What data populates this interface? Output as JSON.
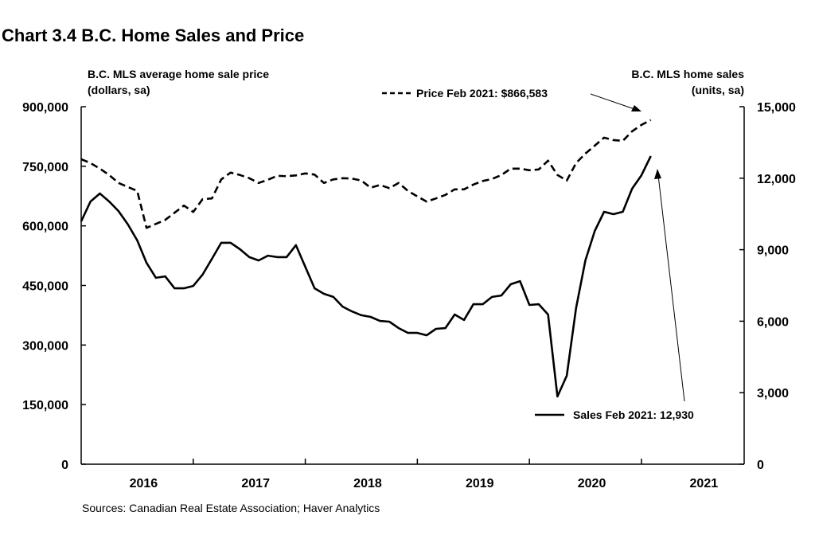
{
  "chart_data": {
    "type": "line",
    "title": "Chart 3.4  B.C. Home Sales and Price",
    "ylabel_left": [
      "B.C. MLS average home sale price",
      "(dollars, sa)"
    ],
    "ylabel_right": [
      "B.C. MLS home sales",
      "(units, sa)"
    ],
    "x_start": "Jan 2016",
    "x_end": "Feb 2021",
    "frequency": "monthly",
    "x_tick_labels": [
      "2016",
      "2017",
      "2018",
      "2019",
      "2020",
      "2021"
    ],
    "xlim": [
      "Jan 2016",
      "Dec 2021"
    ],
    "y_left": {
      "ylim": [
        0,
        900000
      ],
      "tick_labels": [
        "0",
        "150,000",
        "300,000",
        "450,000",
        "600,000",
        "750,000",
        "900,000"
      ]
    },
    "y_right": {
      "ylim": [
        0,
        15000
      ],
      "tick_labels": [
        "0",
        "3,000",
        "6,000",
        "9,000",
        "12,000",
        "15,000"
      ]
    },
    "grid": false,
    "series": [
      {
        "name": "Price",
        "axis": "left",
        "style": "dashed",
        "color": "#000000",
        "values": [
          768000,
          758000,
          744000,
          728000,
          708000,
          698000,
          688000,
          595000,
          605000,
          615000,
          633000,
          651000,
          635000,
          667000,
          669000,
          717000,
          734000,
          728000,
          720000,
          708000,
          716000,
          726000,
          725000,
          727000,
          732000,
          729000,
          708000,
          717000,
          720000,
          719000,
          714000,
          696000,
          703000,
          695000,
          708000,
          688000,
          674000,
          661000,
          669000,
          678000,
          692000,
          692000,
          704000,
          713000,
          718000,
          728000,
          744000,
          744000,
          740000,
          742000,
          764000,
          728000,
          714000,
          758000,
          782000,
          802000,
          822000,
          816000,
          814000,
          838000,
          854000,
          866583
        ]
      },
      {
        "name": "Sales",
        "axis": "right",
        "style": "solid",
        "color": "#000000",
        "values": [
          10190,
          11020,
          11360,
          11020,
          10620,
          10060,
          9390,
          8450,
          7820,
          7880,
          7380,
          7380,
          7480,
          7950,
          8620,
          9290,
          9290,
          9020,
          8690,
          8550,
          8750,
          8690,
          8690,
          9190,
          8280,
          7380,
          7150,
          7020,
          6610,
          6410,
          6250,
          6180,
          6010,
          5980,
          5710,
          5510,
          5510,
          5410,
          5680,
          5710,
          6280,
          6050,
          6710,
          6710,
          7020,
          7080,
          7550,
          7680,
          6680,
          6710,
          6280,
          2840,
          3710,
          6550,
          8550,
          9790,
          10590,
          10490,
          10590,
          11560,
          12120,
          12930
        ]
      }
    ],
    "annotations": {
      "price": "Price Feb 2021: $866,583",
      "sales": "Sales Feb 2021: 12,930"
    },
    "source": "Sources: Canadian Real Estate Association; Haver Analytics"
  }
}
